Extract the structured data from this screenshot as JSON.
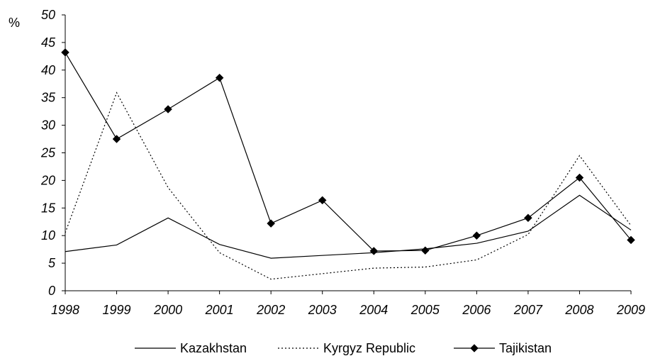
{
  "chart_data": {
    "type": "line",
    "title": "",
    "xlabel": "",
    "ylabel": "%",
    "categories": [
      "1998",
      "1999",
      "2000",
      "2001",
      "2002",
      "2003",
      "2004",
      "2005",
      "2006",
      "2007",
      "2008",
      "2009"
    ],
    "y_ticks": [
      "0",
      "5",
      "10",
      "15",
      "20",
      "25",
      "30",
      "35",
      "40",
      "45",
      "50"
    ],
    "ylim": [
      0,
      50
    ],
    "grid": false,
    "legend_position": "bottom",
    "series": [
      {
        "name": "Kazakhstan",
        "style": "solid",
        "marker": "none",
        "color": "#000000",
        "values": [
          7.1,
          8.3,
          13.2,
          8.4,
          5.9,
          6.4,
          6.9,
          7.6,
          8.6,
          10.8,
          17.3,
          11.0
        ]
      },
      {
        "name": "Kyrgyz Republic",
        "style": "dotted",
        "marker": "none",
        "color": "#000000",
        "values": [
          10.5,
          35.9,
          18.7,
          6.9,
          2.1,
          3.1,
          4.1,
          4.3,
          5.6,
          10.2,
          24.5,
          11.8
        ]
      },
      {
        "name": "Tajikistan",
        "style": "solid",
        "marker": "diamond",
        "color": "#000000",
        "values": [
          43.2,
          27.5,
          32.9,
          38.6,
          12.2,
          16.4,
          7.2,
          7.3,
          10.0,
          13.2,
          20.5,
          9.2
        ]
      }
    ]
  }
}
